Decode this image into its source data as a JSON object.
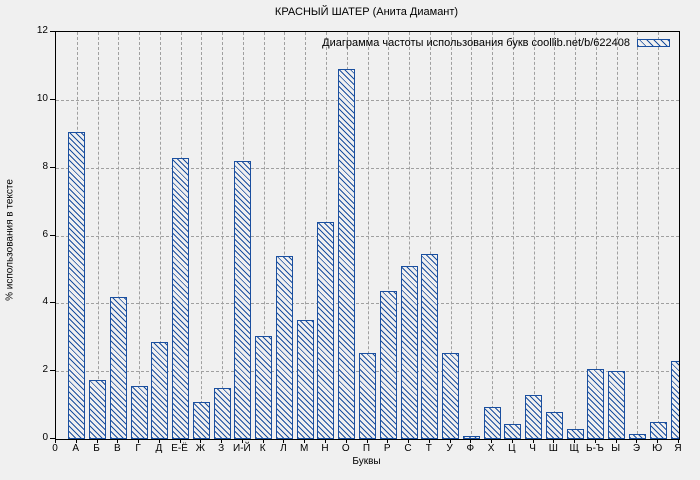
{
  "colors": {
    "bar": "#1a4f9f",
    "grid": "#a0a0a0",
    "axis": "#000000",
    "background": "#f0f0f0",
    "text": "#000000"
  },
  "chart_data": {
    "type": "bar",
    "title": "КРАСНЫЙ ШАТЕР (Анита Диамант)",
    "legend_label": "Диаграмма частоты использования букв coollib.net/b/622408",
    "legend_position": "top-right",
    "xlabel": "Буквы",
    "ylabel": "% использования в тексте",
    "origin_label": "0",
    "categories": [
      "А",
      "Б",
      "В",
      "Г",
      "Д",
      "Е-Ё",
      "Ж",
      "З",
      "И-Й",
      "К",
      "Л",
      "М",
      "Н",
      "О",
      "П",
      "Р",
      "С",
      "Т",
      "У",
      "Ф",
      "Х",
      "Ц",
      "Ч",
      "Ш",
      "Щ",
      "Ь-Ъ",
      "Ы",
      "Э",
      "Ю",
      "Я"
    ],
    "values": [
      9.05,
      1.75,
      4.2,
      1.55,
      2.85,
      8.3,
      1.1,
      1.5,
      8.2,
      3.05,
      5.4,
      3.5,
      6.4,
      10.9,
      2.55,
      4.35,
      5.1,
      5.45,
      2.55,
      0.1,
      0.95,
      0.45,
      1.3,
      0.8,
      0.3,
      2.05,
      2.0,
      0.15,
      0.5,
      2.3
    ],
    "ylim": [
      0,
      12
    ],
    "yticks": [
      0,
      2,
      4,
      6,
      8,
      10,
      12
    ],
    "grid": true,
    "bar_style": "hatched-diagonal"
  }
}
